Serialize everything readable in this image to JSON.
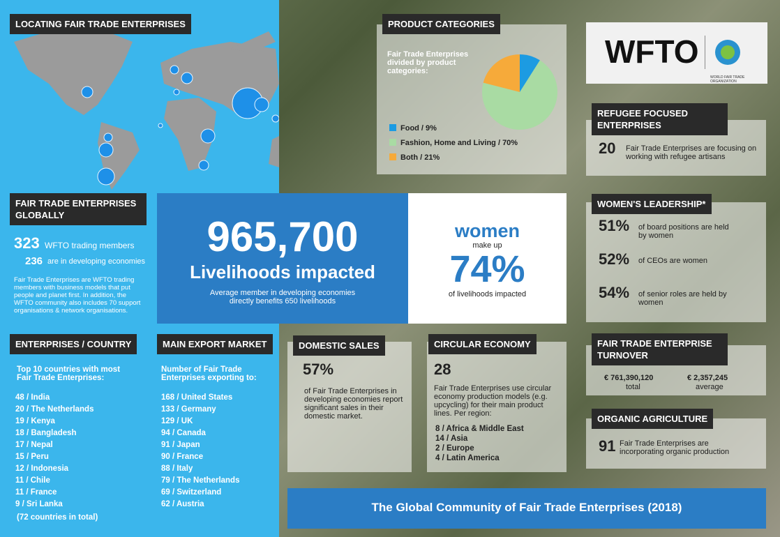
{
  "map_section": {
    "title": "LOCATING FAIR TRADE ENTERPRISES"
  },
  "product_categories": {
    "title": "PRODUCT CATEGORIES",
    "subtitle": "Fair Trade Enterprises divided by product categories:",
    "chart": {
      "type": "pie",
      "labels": [
        "Food / 9%",
        "Fashion, Home and Living / 70%",
        "Both / 21%"
      ],
      "values": [
        9,
        70,
        21
      ],
      "colors": [
        "#1c9be2",
        "#a9dba3",
        "#f6aa3a"
      ]
    }
  },
  "logo": {
    "text": "WFTO",
    "tagline": "WORLD FAIR TRADE ORGANIZATION"
  },
  "refugee": {
    "title": "REFUGEE FOCUSED ENTERPRISES",
    "number": "20",
    "text": "Fair Trade Enterprises are focusing on working with refugee artisans"
  },
  "globally": {
    "title": "FAIR TRADE ENTERPRISES GLOBALLY",
    "members_number": "323",
    "members_text": "WFTO trading members",
    "developing_number": "236",
    "developing_text": "are in developing economies",
    "paragraph": "Fair Trade Enterprises are WFTO trading members with business models that put people and planet first. In addition, the WFTO community also includes 70 support organisations & network organisations."
  },
  "livelihoods": {
    "number": "965,700",
    "label": "Livelihoods impacted",
    "note": "Average member in developing economies directly benefits 650 livelihoods"
  },
  "women_share": {
    "title": "women",
    "subtitle": "make up",
    "number": "74%",
    "note": "of livelihoods impacted"
  },
  "women_leadership": {
    "title": "WOMEN'S LEADERSHIP*",
    "items": [
      {
        "number": "51%",
        "text": "of board positions are held by women"
      },
      {
        "number": "52%",
        "text": "of CEOs are women"
      },
      {
        "number": "54%",
        "text": "of senior roles are held by women"
      }
    ]
  },
  "enterprises_country": {
    "title": "ENTERPRISES / COUNTRY",
    "intro": "Top 10 countries with most Fair Trade Enterprises:",
    "rows": [
      "48 / India",
      "20 / The Netherlands",
      "19 / Kenya",
      "18 / Bangladesh",
      "17 / Nepal",
      "15 / Peru",
      "12 / Indonesia",
      "11 / Chile",
      "11 / France",
      "9 / Sri Lanka"
    ],
    "footer": "(72 countries in total)"
  },
  "export_market": {
    "title": "MAIN EXPORT MARKET",
    "intro": "Number of Fair Trade Enterprises exporting to:",
    "rows": [
      "168 / United States",
      "133 / Germany",
      "129 / UK",
      "94 / Canada",
      "91 / Japan",
      "90 / France",
      "88 / Italy",
      "79 / The Netherlands",
      "69 / Switzerland",
      "62 / Austria"
    ]
  },
  "domestic_sales": {
    "title": "DOMESTIC SALES",
    "number": "57%",
    "text": "of Fair Trade Enterprises in developing economies report significant sales in their domestic market."
  },
  "circular_economy": {
    "title": "CIRCULAR ECONOMY",
    "number": "28",
    "text": "Fair Trade Enterprises use circular economy production models (e.g. upcycling) for their main product lines. Per region:",
    "rows": [
      "8 / Africa & Middle East",
      "14 / Asia",
      "2 / Europe",
      "4 / Latin America"
    ]
  },
  "turnover": {
    "title": "FAIR TRADE ENTERPRISE TURNOVER",
    "total": "€ 761,390,120",
    "total_label": "total",
    "average": "€ 2,357,245",
    "average_label": "average"
  },
  "organic": {
    "title": "ORGANIC AGRICULTURE",
    "number": "91",
    "text": "Fair Trade Enterprises are incorporating organic production"
  },
  "banner": {
    "text": "The Global Community of Fair Trade Enterprises (2018)"
  }
}
